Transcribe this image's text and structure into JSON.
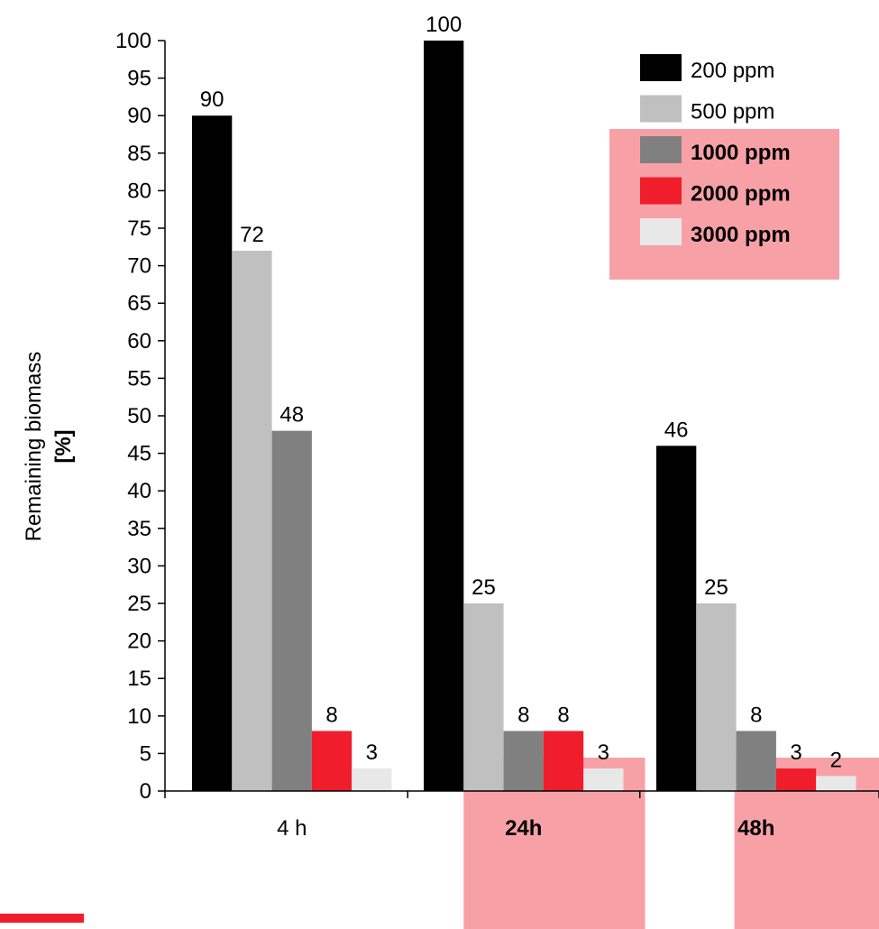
{
  "chart_data": {
    "type": "bar",
    "categories": [
      "4 h",
      "24h",
      "48h"
    ],
    "category_bold": [
      false,
      true,
      true
    ],
    "series": [
      {
        "name": "200 ppm",
        "color": "#000000",
        "bold": false,
        "values": [
          90,
          100,
          46
        ]
      },
      {
        "name": "500 ppm",
        "color": "#c0c0c0",
        "bold": false,
        "values": [
          72,
          25,
          25
        ]
      },
      {
        "name": "1000 ppm",
        "color": "#808080",
        "bold": true,
        "values": [
          48,
          8,
          8
        ]
      },
      {
        "name": "2000 ppm",
        "color": "#f01d2c",
        "bold": true,
        "values": [
          8,
          8,
          3
        ]
      },
      {
        "name": "3000 ppm",
        "color": "#e8e8e8",
        "bold": true,
        "values": [
          3,
          3,
          2
        ]
      }
    ],
    "ylabel": "Remaining biomass",
    "ylabel_unit": "[%]",
    "ylim": [
      0,
      100
    ],
    "ytick_step": 5,
    "legend_position": "top-right",
    "highlight_color": "#f7a1a7",
    "grid": false
  }
}
